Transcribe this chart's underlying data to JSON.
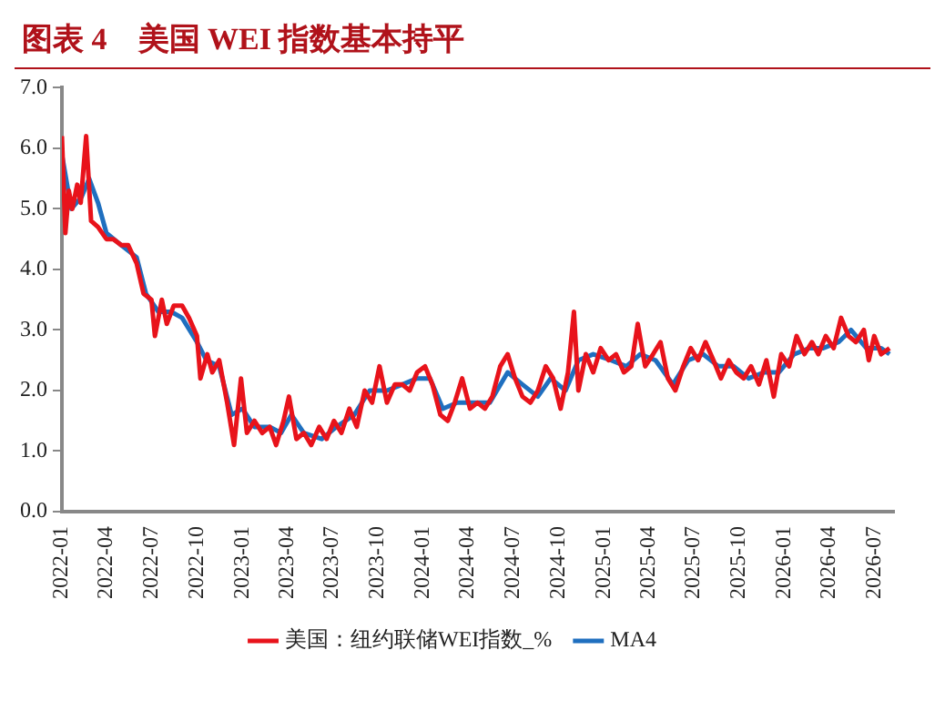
{
  "chart_data": {
    "type": "line",
    "title": "图表 4　美国 WEI 指数基本持平",
    "xlim": [
      "2022-01",
      "2026-08-10"
    ],
    "xticks": [
      "2022-01",
      "2022-04",
      "2022-07",
      "2022-10",
      "2023-01",
      "2023-04",
      "2023-07",
      "2023-10",
      "2024-01",
      "2024-04",
      "2024-07",
      "2024-10",
      "2025-01",
      "2025-04",
      "2025-07",
      "2025-10",
      "2026-01",
      "2026-04",
      "2026-07"
    ],
    "ylim": [
      0,
      7
    ],
    "yticks": [
      {
        "value": 0,
        "label": "0.0"
      },
      {
        "value": 1,
        "label": "1.0"
      },
      {
        "value": 2,
        "label": "2.0"
      },
      {
        "value": 3,
        "label": "3.0"
      },
      {
        "value": 4,
        "label": "4.0"
      },
      {
        "value": 5,
        "label": "5.0"
      },
      {
        "value": 6,
        "label": "6.0"
      },
      {
        "value": 7,
        "label": "7.0"
      }
    ],
    "grid": false,
    "legend": "bottom",
    "marker": "none",
    "line_style": "solid",
    "series": [
      {
        "name": "美国：纽约联储WEI指数_%",
        "color": "#e8131b",
        "x": [
          "2022-01-01",
          "2022-01-08",
          "2022-01-15",
          "2022-01-22",
          "2022-02-01",
          "2022-02-08",
          "2022-02-19",
          "2022-03-01",
          "2022-03-15",
          "2022-04-01",
          "2022-04-15",
          "2022-05-01",
          "2022-05-15",
          "2022-06-01",
          "2022-06-15",
          "2022-07-01",
          "2022-07-08",
          "2022-07-22",
          "2022-08-01",
          "2022-08-15",
          "2022-09-01",
          "2022-09-15",
          "2022-10-01",
          "2022-10-08",
          "2022-10-22",
          "2022-11-01",
          "2022-11-15",
          "2022-12-01",
          "2022-12-15",
          "2022-12-29",
          "2023-01-10",
          "2023-01-25",
          "2023-02-10",
          "2023-02-25",
          "2023-03-10",
          "2023-03-25",
          "2023-04-05",
          "2023-04-20",
          "2023-05-05",
          "2023-05-20",
          "2023-06-05",
          "2023-06-20",
          "2023-07-05",
          "2023-07-20",
          "2023-08-05",
          "2023-08-20",
          "2023-09-05",
          "2023-09-20",
          "2023-10-05",
          "2023-10-20",
          "2023-11-05",
          "2023-11-20",
          "2023-12-05",
          "2023-12-20",
          "2024-01-05",
          "2024-01-20",
          "2024-02-05",
          "2024-02-20",
          "2024-03-05",
          "2024-03-20",
          "2024-04-05",
          "2024-04-20",
          "2024-05-05",
          "2024-05-20",
          "2024-06-05",
          "2024-06-20",
          "2024-07-05",
          "2024-07-20",
          "2024-08-05",
          "2024-08-20",
          "2024-09-05",
          "2024-09-20",
          "2024-10-05",
          "2024-10-20",
          "2024-11-01",
          "2024-11-10",
          "2024-11-25",
          "2024-12-10",
          "2024-12-25",
          "2025-01-10",
          "2025-01-25",
          "2025-02-10",
          "2025-02-25",
          "2025-03-10",
          "2025-03-25",
          "2025-04-10",
          "2025-04-25",
          "2025-05-10",
          "2025-05-25",
          "2025-06-10",
          "2025-06-25",
          "2025-07-10",
          "2025-07-25",
          "2025-08-10",
          "2025-08-25",
          "2025-09-10",
          "2025-09-25",
          "2025-10-10",
          "2025-10-25",
          "2025-11-10",
          "2025-11-25",
          "2025-12-10",
          "2025-12-25",
          "2026-01-10",
          "2026-01-25",
          "2026-02-10",
          "2026-02-25",
          "2026-03-10",
          "2026-03-25",
          "2026-04-10",
          "2026-04-25",
          "2026-05-10",
          "2026-05-25",
          "2026-06-10",
          "2026-06-20",
          "2026-07-01",
          "2026-07-15",
          "2026-08-01"
        ],
        "values": [
          6.2,
          4.6,
          5.3,
          5.0,
          5.4,
          5.1,
          6.2,
          4.8,
          4.7,
          4.5,
          4.5,
          4.4,
          4.4,
          4.1,
          3.6,
          3.5,
          2.9,
          3.5,
          3.1,
          3.4,
          3.4,
          3.2,
          2.9,
          2.2,
          2.6,
          2.3,
          2.5,
          1.8,
          1.1,
          2.2,
          1.3,
          1.5,
          1.3,
          1.4,
          1.1,
          1.5,
          1.9,
          1.2,
          1.3,
          1.1,
          1.4,
          1.2,
          1.5,
          1.3,
          1.7,
          1.4,
          2.0,
          1.8,
          2.4,
          1.8,
          2.1,
          2.1,
          2.0,
          2.3,
          2.4,
          2.1,
          1.6,
          1.5,
          1.8,
          2.2,
          1.7,
          1.8,
          1.7,
          1.9,
          2.4,
          2.6,
          2.2,
          1.9,
          1.8,
          2.0,
          2.4,
          2.2,
          1.7,
          2.3,
          3.3,
          2.0,
          2.6,
          2.3,
          2.7,
          2.5,
          2.6,
          2.3,
          2.4,
          3.1,
          2.4,
          2.6,
          2.8,
          2.2,
          2.0,
          2.4,
          2.7,
          2.5,
          2.8,
          2.5,
          2.2,
          2.5,
          2.3,
          2.2,
          2.4,
          2.1,
          2.5,
          1.9,
          2.6,
          2.4,
          2.9,
          2.6,
          2.8,
          2.6,
          2.9,
          2.7,
          3.2,
          2.9,
          2.8,
          3.0,
          2.5,
          2.9,
          2.6,
          2.7
        ]
      },
      {
        "name": "MA4",
        "color": "#1f6fbf",
        "x": [
          "2022-01-01",
          "2022-01-20",
          "2022-02-10",
          "2022-02-25",
          "2022-03-15",
          "2022-04-01",
          "2022-05-01",
          "2022-06-01",
          "2022-06-20",
          "2022-07-15",
          "2022-08-10",
          "2022-09-01",
          "2022-10-01",
          "2022-10-20",
          "2022-11-15",
          "2022-12-10",
          "2023-01-01",
          "2023-01-25",
          "2023-02-25",
          "2023-03-20",
          "2023-04-10",
          "2023-05-05",
          "2023-06-10",
          "2023-07-10",
          "2023-08-15",
          "2023-09-15",
          "2023-10-20",
          "2023-11-20",
          "2023-12-20",
          "2024-01-15",
          "2024-02-10",
          "2024-03-10",
          "2024-04-15",
          "2024-05-15",
          "2024-06-20",
          "2024-07-20",
          "2024-08-20",
          "2024-09-15",
          "2024-10-15",
          "2024-11-10",
          "2024-12-10",
          "2025-01-15",
          "2025-02-15",
          "2025-03-15",
          "2025-04-15",
          "2025-05-20",
          "2025-06-20",
          "2025-07-20",
          "2025-08-20",
          "2025-09-20",
          "2025-10-20",
          "2025-11-20",
          "2025-12-20",
          "2026-01-20",
          "2026-02-20",
          "2026-03-20",
          "2026-04-20",
          "2026-05-15",
          "2026-06-15",
          "2026-07-15",
          "2026-08-01"
        ],
        "values": [
          5.9,
          5.0,
          5.2,
          5.5,
          5.1,
          4.6,
          4.4,
          4.2,
          3.6,
          3.3,
          3.3,
          3.2,
          2.8,
          2.5,
          2.4,
          1.6,
          1.7,
          1.4,
          1.4,
          1.3,
          1.6,
          1.3,
          1.2,
          1.4,
          1.6,
          2.0,
          2.0,
          2.1,
          2.2,
          2.2,
          1.7,
          1.8,
          1.8,
          1.8,
          2.3,
          2.1,
          1.9,
          2.2,
          2.0,
          2.5,
          2.6,
          2.5,
          2.4,
          2.6,
          2.5,
          2.1,
          2.5,
          2.6,
          2.4,
          2.4,
          2.2,
          2.3,
          2.3,
          2.6,
          2.7,
          2.7,
          2.8,
          3.0,
          2.7,
          2.7,
          2.6
        ]
      }
    ]
  }
}
